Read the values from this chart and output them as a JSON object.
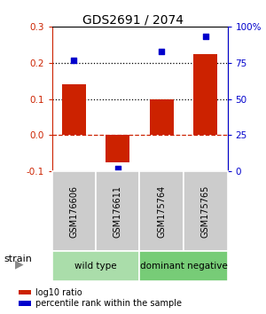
{
  "title": "GDS2691 / 2074",
  "samples": [
    "GSM176606",
    "GSM176611",
    "GSM175764",
    "GSM175765"
  ],
  "log10_ratio": [
    0.14,
    -0.075,
    0.1,
    0.225
  ],
  "percentile_rank": [
    77,
    2,
    83,
    93
  ],
  "groups": [
    {
      "label": "wild type",
      "color": "#aaddaa",
      "samples": [
        0,
        1
      ]
    },
    {
      "label": "dominant negative",
      "color": "#77cc77",
      "samples": [
        2,
        3
      ]
    }
  ],
  "bar_color": "#cc2200",
  "dot_color": "#0000cc",
  "ylim_left": [
    -0.1,
    0.3
  ],
  "ylim_right": [
    0,
    100
  ],
  "yticks_left": [
    -0.1,
    0.0,
    0.1,
    0.2,
    0.3
  ],
  "yticks_right": [
    0,
    25,
    50,
    75,
    100
  ],
  "ytick_labels_right": [
    "0",
    "25",
    "50",
    "75",
    "100%"
  ],
  "hlines_dotted": [
    0.1,
    0.2
  ],
  "hline_zero_color": "#cc2200",
  "background_color": "#ffffff",
  "sample_box_color": "#cccccc",
  "legend_items": [
    {
      "color": "#cc2200",
      "label": "log10 ratio"
    },
    {
      "color": "#0000cc",
      "label": "percentile rank within the sample"
    }
  ]
}
